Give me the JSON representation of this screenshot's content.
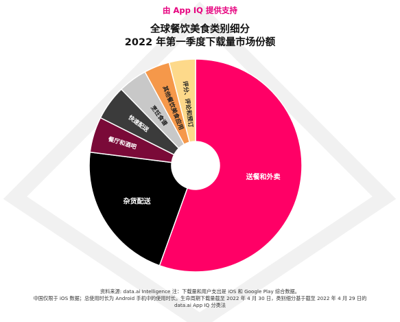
{
  "header": {
    "provider": "由 App IQ 提供支持",
    "title_line1": "全球餐饮美食类别细分",
    "title_line2": "2022 年第一季度下载量市场份额"
  },
  "chart_data": {
    "type": "pie",
    "donut": true,
    "start_angle_deg": 0,
    "direction": "clockwise",
    "slices": [
      {
        "label": "送餐和外卖",
        "value": 55.5,
        "color": "#ff0066"
      },
      {
        "label": "杂货配送",
        "value": 21.5,
        "color": "#000000"
      },
      {
        "label": "餐厅和酒吧",
        "value": 5.4,
        "color": "#7a0a38"
      },
      {
        "label": "快速配送",
        "value": 5.3,
        "color": "#3b3b3b"
      },
      {
        "label": "烹饪食谱",
        "value": 4.4,
        "color": "#c8c8c8"
      },
      {
        "label": "其他餐饮美食应用",
        "value": 3.9,
        "color": "#f5984a"
      },
      {
        "label": "评分、评论和预订",
        "value": 4.0,
        "color": "#fdd98a"
      }
    ]
  },
  "footer": {
    "line1": "资料来源: data.ai Intelligence 注：下载量和用户支出是 iOS 和 Google Play 综合数据。",
    "line2": "中国仅限于 iOS 数据；总使用时长为 Android 手机中的使用时长。生命周期下载量截至 2022 年 4 月 30 日，类别细分基于截至 2022 年 4 月 29 日的",
    "line3": "data.ai App IQ 分类法"
  },
  "colors": {
    "accent": "#e6007e",
    "title": "#111111"
  }
}
